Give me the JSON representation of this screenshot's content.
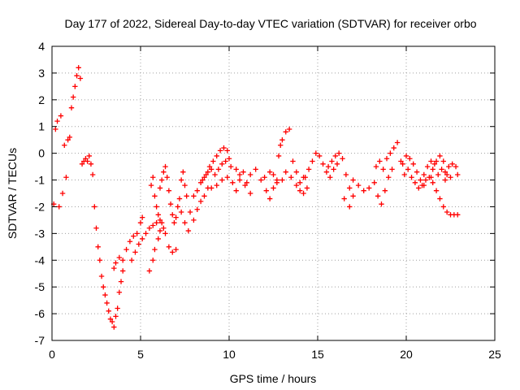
{
  "chart_data": {
    "type": "scatter",
    "title": "Day 177 of 2022, Sidereal Day-to-day VTEC variation (SDTVAR) for receiver orbo",
    "xlabel": "GPS time / hours",
    "ylabel": "SDTVAR / TECUs",
    "xlim": [
      0,
      25
    ],
    "ylim": [
      -7,
      4
    ],
    "xticks": [
      0,
      5,
      10,
      15,
      20,
      25
    ],
    "xtick_labels": [
      "0",
      "5",
      "10",
      "15",
      "20",
      "25"
    ],
    "yticks": [
      -7,
      -6,
      -5,
      -4,
      -3,
      -2,
      -1,
      0,
      1,
      2,
      3,
      4
    ],
    "ytick_labels": [
      "-7",
      "-6",
      "-5",
      "-4",
      "-3",
      "-2",
      "-1",
      "0",
      "1",
      "2",
      "3",
      "4"
    ],
    "grid": true,
    "marker": "+",
    "series": [
      {
        "name": "SDTVAR",
        "color": "#ff0000",
        "points": [
          [
            0.1,
            -1.9
          ],
          [
            0.2,
            0.9
          ],
          [
            0.3,
            1.2
          ],
          [
            0.4,
            -2.0
          ],
          [
            0.5,
            1.4
          ],
          [
            0.6,
            -1.5
          ],
          [
            0.7,
            0.3
          ],
          [
            0.8,
            -0.9
          ],
          [
            0.9,
            0.5
          ],
          [
            1.0,
            0.6
          ],
          [
            1.1,
            1.7
          ],
          [
            1.2,
            2.1
          ],
          [
            1.3,
            2.5
          ],
          [
            1.4,
            2.9
          ],
          [
            1.5,
            3.2
          ],
          [
            1.6,
            2.8
          ],
          [
            1.7,
            -0.4
          ],
          [
            1.8,
            -0.3
          ],
          [
            1.9,
            -0.2
          ],
          [
            2.0,
            -0.3
          ],
          [
            2.1,
            -0.1
          ],
          [
            2.2,
            -0.4
          ],
          [
            2.3,
            -0.8
          ],
          [
            2.4,
            -2.0
          ],
          [
            2.5,
            -2.8
          ],
          [
            2.6,
            -3.5
          ],
          [
            2.7,
            -4.0
          ],
          [
            2.8,
            -4.6
          ],
          [
            2.9,
            -5.0
          ],
          [
            3.0,
            -5.3
          ],
          [
            3.1,
            -5.6
          ],
          [
            3.2,
            -5.9
          ],
          [
            3.3,
            -6.2
          ],
          [
            3.4,
            -6.3
          ],
          [
            3.5,
            -6.5
          ],
          [
            3.6,
            -6.1
          ],
          [
            3.7,
            -5.8
          ],
          [
            3.8,
            -5.2
          ],
          [
            3.9,
            -4.8
          ],
          [
            4.0,
            -4.4
          ],
          [
            3.5,
            -4.3
          ],
          [
            3.6,
            -4.1
          ],
          [
            3.8,
            -3.9
          ],
          [
            4.0,
            -4.0
          ],
          [
            4.2,
            -3.6
          ],
          [
            4.4,
            -3.3
          ],
          [
            4.6,
            -3.1
          ],
          [
            4.8,
            -3.0
          ],
          [
            5.0,
            -2.6
          ],
          [
            5.1,
            -2.4
          ],
          [
            4.5,
            -4.0
          ],
          [
            4.7,
            -3.7
          ],
          [
            4.9,
            -3.4
          ],
          [
            5.1,
            -3.2
          ],
          [
            5.3,
            -3.0
          ],
          [
            5.5,
            -2.8
          ],
          [
            5.7,
            -2.7
          ],
          [
            5.9,
            -2.6
          ],
          [
            6.1,
            -2.5
          ],
          [
            6.3,
            -2.8
          ],
          [
            5.5,
            -4.4
          ],
          [
            5.7,
            -4.0
          ],
          [
            5.8,
            -3.6
          ],
          [
            6.0,
            -3.2
          ],
          [
            6.1,
            -2.9
          ],
          [
            6.2,
            -2.6
          ],
          [
            6.4,
            -3.0
          ],
          [
            6.6,
            -3.5
          ],
          [
            6.8,
            -3.7
          ],
          [
            7.0,
            -3.6
          ],
          [
            5.6,
            -1.2
          ],
          [
            5.7,
            -0.9
          ],
          [
            5.8,
            -1.6
          ],
          [
            5.9,
            -2.0
          ],
          [
            6.0,
            -2.3
          ],
          [
            6.1,
            -1.3
          ],
          [
            6.2,
            -1.0
          ],
          [
            6.3,
            -0.7
          ],
          [
            6.4,
            -0.5
          ],
          [
            6.5,
            -0.9
          ],
          [
            6.6,
            -1.4
          ],
          [
            6.7,
            -1.9
          ],
          [
            6.8,
            -2.3
          ],
          [
            6.9,
            -2.6
          ],
          [
            7.0,
            -2.4
          ],
          [
            7.1,
            -2.0
          ],
          [
            7.2,
            -1.7
          ],
          [
            7.3,
            -2.2
          ],
          [
            7.5,
            -2.6
          ],
          [
            7.7,
            -2.9
          ],
          [
            7.3,
            -1.0
          ],
          [
            7.4,
            -0.7
          ],
          [
            7.5,
            -1.2
          ],
          [
            7.6,
            -1.6
          ],
          [
            7.8,
            -2.2
          ],
          [
            8.0,
            -2.5
          ],
          [
            8.2,
            -2.1
          ],
          [
            8.4,
            -1.8
          ],
          [
            8.6,
            -1.6
          ],
          [
            8.8,
            -1.3
          ],
          [
            8.0,
            -1.6
          ],
          [
            8.2,
            -1.4
          ],
          [
            8.4,
            -1.1
          ],
          [
            8.6,
            -0.9
          ],
          [
            8.8,
            -0.7
          ],
          [
            9.0,
            -0.6
          ],
          [
            9.2,
            -0.8
          ],
          [
            9.4,
            -0.6
          ],
          [
            9.6,
            -0.4
          ],
          [
            9.8,
            -0.3
          ],
          [
            8.5,
            -1.0
          ],
          [
            8.7,
            -0.8
          ],
          [
            8.9,
            -0.5
          ],
          [
            9.1,
            -0.3
          ],
          [
            9.3,
            -0.1
          ],
          [
            9.5,
            0.1
          ],
          [
            9.7,
            0.2
          ],
          [
            9.9,
            0.1
          ],
          [
            10.0,
            -0.2
          ],
          [
            10.1,
            -0.5
          ],
          [
            9.0,
            -1.3
          ],
          [
            9.3,
            -1.2
          ],
          [
            9.6,
            -1.0
          ],
          [
            9.9,
            -0.9
          ],
          [
            10.2,
            -1.1
          ],
          [
            10.4,
            -1.4
          ],
          [
            10.6,
            -1.0
          ],
          [
            10.8,
            -0.7
          ],
          [
            11.0,
            -1.1
          ],
          [
            11.2,
            -1.5
          ],
          [
            10.4,
            -0.6
          ],
          [
            10.6,
            -0.8
          ],
          [
            10.9,
            -1.2
          ],
          [
            11.2,
            -0.8
          ],
          [
            11.5,
            -0.6
          ],
          [
            11.8,
            -1.0
          ],
          [
            12.1,
            -1.4
          ],
          [
            12.3,
            -1.7
          ],
          [
            12.5,
            -1.3
          ],
          [
            12.7,
            -1.0
          ],
          [
            12.0,
            -0.9
          ],
          [
            12.3,
            -0.7
          ],
          [
            12.5,
            -0.8
          ],
          [
            12.7,
            -1.1
          ],
          [
            13.0,
            -1.0
          ],
          [
            13.2,
            -0.7
          ],
          [
            13.5,
            -0.9
          ],
          [
            13.8,
            -1.2
          ],
          [
            14.0,
            -1.4
          ],
          [
            14.2,
            -0.9
          ],
          [
            12.8,
            -0.1
          ],
          [
            12.9,
            0.3
          ],
          [
            13.0,
            0.5
          ],
          [
            13.2,
            0.8
          ],
          [
            13.4,
            0.9
          ],
          [
            13.6,
            -0.3
          ],
          [
            13.8,
            -0.7
          ],
          [
            14.0,
            -1.1
          ],
          [
            14.2,
            -1.5
          ],
          [
            14.4,
            -1.3
          ],
          [
            14.3,
            -0.9
          ],
          [
            14.5,
            -0.6
          ],
          [
            14.7,
            -0.3
          ],
          [
            14.9,
            0.0
          ],
          [
            15.1,
            -0.1
          ],
          [
            15.3,
            -0.4
          ],
          [
            15.5,
            -0.7
          ],
          [
            15.7,
            -0.9
          ],
          [
            15.9,
            -0.6
          ],
          [
            16.1,
            -0.4
          ],
          [
            15.6,
            -0.5
          ],
          [
            15.8,
            -0.3
          ],
          [
            16.0,
            -0.1
          ],
          [
            16.2,
            0.0
          ],
          [
            16.4,
            -0.2
          ],
          [
            16.6,
            -0.8
          ],
          [
            16.8,
            -1.3
          ],
          [
            17.0,
            -1.6
          ],
          [
            16.8,
            -2.0
          ],
          [
            16.5,
            -1.7
          ],
          [
            17.0,
            -1.0
          ],
          [
            17.3,
            -1.2
          ],
          [
            17.6,
            -1.4
          ],
          [
            17.9,
            -1.3
          ],
          [
            18.2,
            -1.1
          ],
          [
            18.4,
            -1.6
          ],
          [
            18.6,
            -1.9
          ],
          [
            18.8,
            -1.4
          ],
          [
            19.0,
            -0.9
          ],
          [
            19.2,
            -0.6
          ],
          [
            18.3,
            -0.5
          ],
          [
            18.5,
            -0.3
          ],
          [
            18.7,
            -0.6
          ],
          [
            18.9,
            -0.2
          ],
          [
            19.1,
            0.0
          ],
          [
            19.3,
            0.2
          ],
          [
            19.5,
            0.4
          ],
          [
            19.7,
            -0.3
          ],
          [
            19.9,
            -0.8
          ],
          [
            20.1,
            -0.6
          ],
          [
            19.8,
            -0.4
          ],
          [
            20.0,
            -0.1
          ],
          [
            20.2,
            -0.2
          ],
          [
            20.4,
            -0.4
          ],
          [
            20.6,
            -0.7
          ],
          [
            20.8,
            -1.0
          ],
          [
            21.0,
            -0.8
          ],
          [
            21.2,
            -0.5
          ],
          [
            21.4,
            -0.3
          ],
          [
            21.6,
            -0.4
          ],
          [
            20.3,
            -0.9
          ],
          [
            20.5,
            -1.1
          ],
          [
            20.7,
            -1.3
          ],
          [
            20.9,
            -1.2
          ],
          [
            21.1,
            -1.0
          ],
          [
            21.3,
            -0.9
          ],
          [
            21.5,
            -0.6
          ],
          [
            21.7,
            -0.3
          ],
          [
            21.9,
            -0.1
          ],
          [
            22.1,
            -0.3
          ],
          [
            21.5,
            -1.1
          ],
          [
            21.7,
            -1.4
          ],
          [
            21.9,
            -1.7
          ],
          [
            22.1,
            -2.0
          ],
          [
            22.3,
            -2.2
          ],
          [
            22.5,
            -2.3
          ],
          [
            22.7,
            -2.3
          ],
          [
            22.9,
            -2.3
          ],
          [
            22.0,
            -0.6
          ],
          [
            22.3,
            -0.8
          ],
          [
            22.2,
            -0.7
          ],
          [
            22.4,
            -0.5
          ],
          [
            22.6,
            -0.4
          ],
          [
            22.8,
            -0.5
          ],
          [
            22.9,
            -0.8
          ],
          [
            22.5,
            -0.9
          ],
          [
            22.2,
            -1.0
          ],
          [
            21.8,
            -0.8
          ],
          [
            21.4,
            -0.9
          ],
          [
            21.0,
            -1.2
          ]
        ]
      }
    ]
  }
}
